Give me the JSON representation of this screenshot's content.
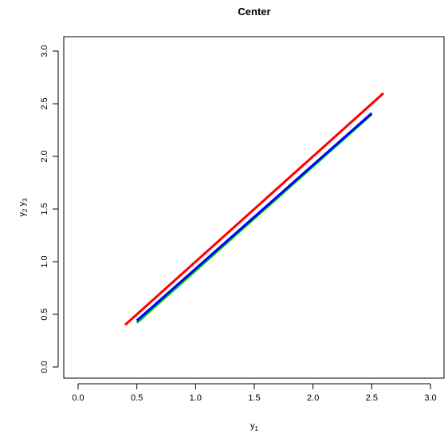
{
  "chart_data": {
    "type": "line",
    "title": "Center",
    "xlabel": {
      "base": "y",
      "sub": "1"
    },
    "ylabel": {
      "parts": [
        {
          "base": "y",
          "sub": "2"
        },
        {
          "base": "y",
          "sub": "3"
        }
      ]
    },
    "xlim": [
      0,
      3
    ],
    "ylim": [
      0,
      3
    ],
    "xticks": [
      0.0,
      0.5,
      1.0,
      1.5,
      2.0,
      2.5,
      3.0
    ],
    "yticks": [
      0.0,
      0.5,
      1.0,
      1.5,
      2.0,
      2.5,
      3.0
    ],
    "xtick_labels": [
      "0.0",
      "0.5",
      "1.0",
      "1.5",
      "2.0",
      "2.5",
      "3.0"
    ],
    "ytick_labels": [
      "0.0",
      "0.5",
      "1.0",
      "1.5",
      "2.0",
      "2.5",
      "3.0"
    ],
    "grid": false,
    "series": [
      {
        "color": "#00cd00",
        "x": [
          0.5,
          2.5
        ],
        "y": [
          0.42,
          2.4
        ]
      },
      {
        "color": "#0000ff",
        "x": [
          0.5,
          2.5
        ],
        "y": [
          0.44,
          2.41
        ]
      },
      {
        "color": "#ff0000",
        "x": [
          0.4,
          2.6
        ],
        "y": [
          0.4,
          2.6
        ]
      }
    ]
  }
}
